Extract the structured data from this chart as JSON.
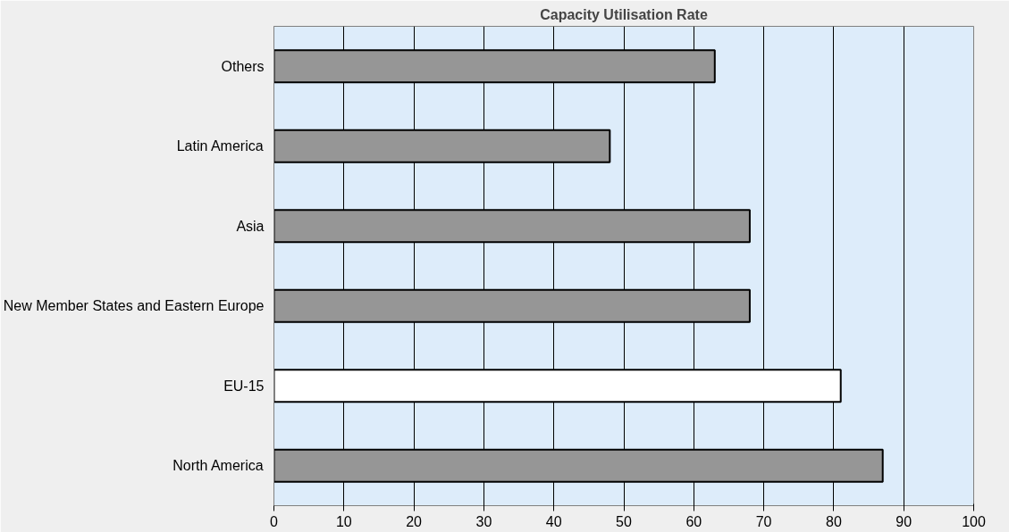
{
  "chart_data": {
    "type": "bar",
    "orientation": "horizontal",
    "title": "Capacity Utilisation Rate",
    "categories": [
      "Others",
      "Latin America",
      "Asia",
      "New Member States and Eastern Europe",
      "EU-15",
      "North America"
    ],
    "values": [
      63,
      48,
      68,
      68,
      81,
      87
    ],
    "colors": [
      "#969696",
      "#969696",
      "#969696",
      "#969696",
      "#ffffff",
      "#969696"
    ],
    "xlim": [
      0,
      100
    ],
    "xticks": [
      0,
      10,
      20,
      30,
      40,
      50,
      60,
      70,
      80,
      90,
      100
    ],
    "grid": "x"
  }
}
